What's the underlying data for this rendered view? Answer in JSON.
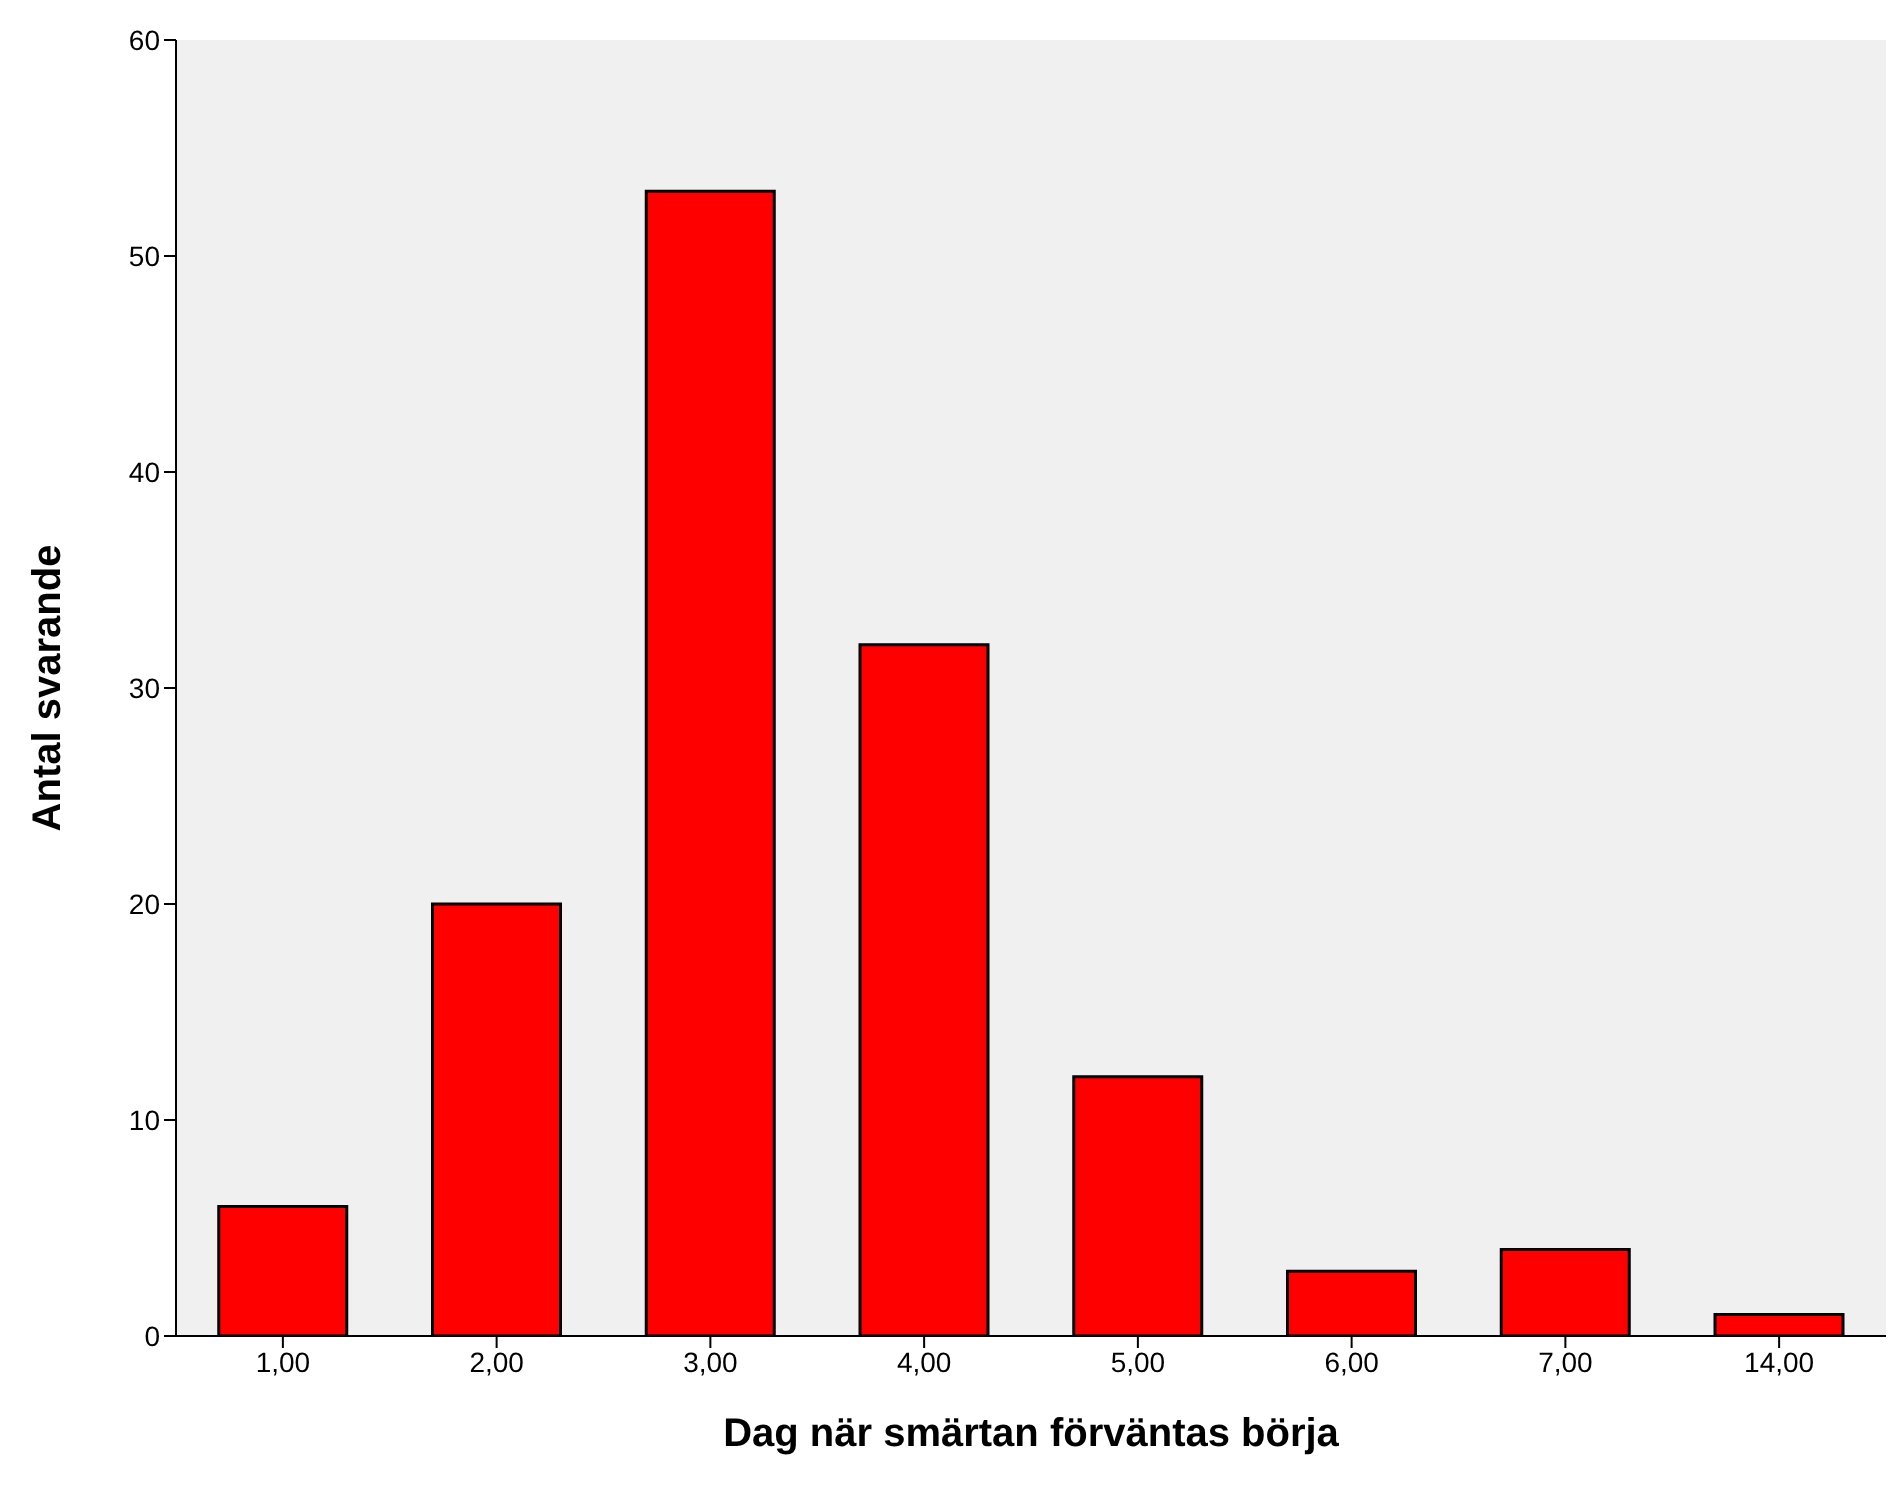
{
  "chart_data": {
    "type": "bar",
    "xlabel": "Dag när smärtan förväntas börja",
    "ylabel": "Antal svarande",
    "categories": [
      "1,00",
      "2,00",
      "3,00",
      "4,00",
      "5,00",
      "6,00",
      "7,00",
      "14,00"
    ],
    "values": [
      6,
      20,
      53,
      32,
      12,
      3,
      4,
      1
    ],
    "color": "#ff0000",
    "ylim": [
      0,
      60
    ],
    "yticks": [
      0,
      10,
      20,
      30,
      40,
      50,
      60
    ],
    "grid": false
  }
}
